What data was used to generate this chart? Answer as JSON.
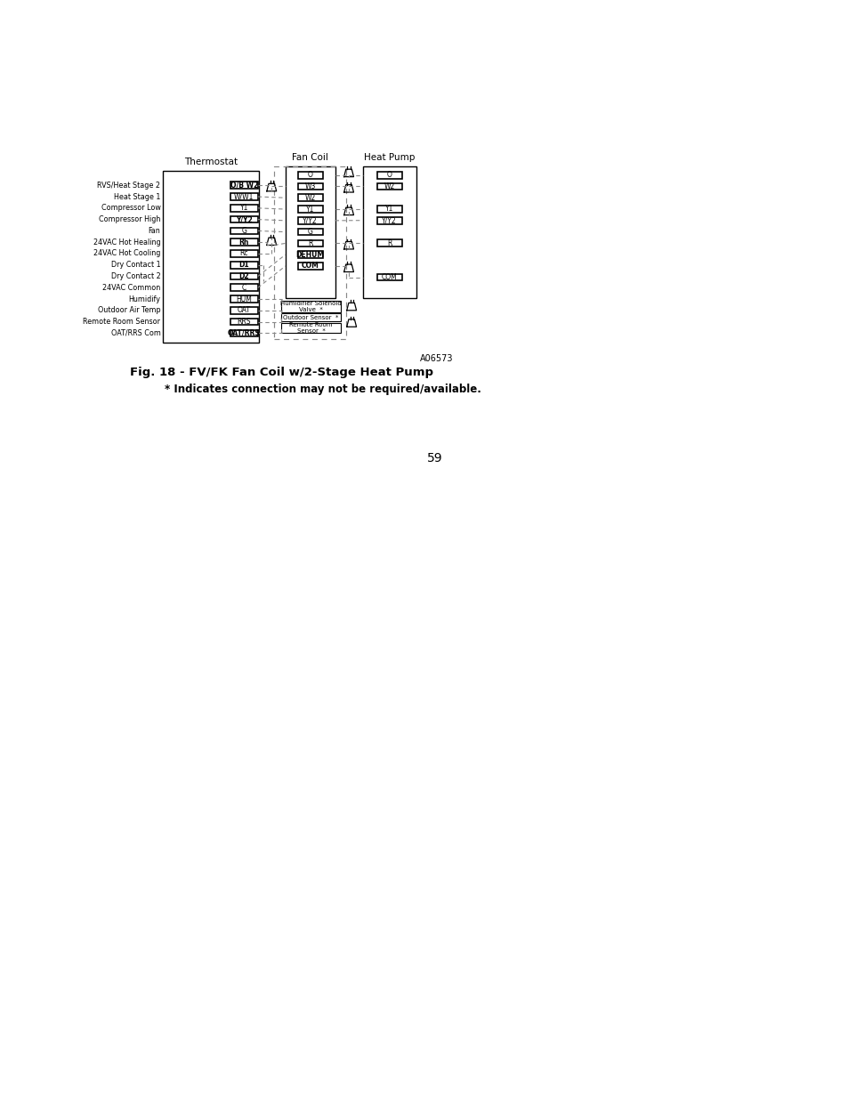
{
  "title": "Fig. 18 - FV/FK Fan Coil w/2-Stage Heat Pump",
  "subtitle": "* Indicates connection may not be required/available.",
  "ref_num": "A06573",
  "thermostat_label": "Thermostat",
  "fan_coil_label": "Fan Coil",
  "heat_pump_label": "Heat Pump",
  "thermostat_rows": [
    {
      "label": "RVS/Heat Stage 2",
      "terminal": "O/B W2",
      "bold": true
    },
    {
      "label": "Heat Stage 1",
      "terminal": "W/W1",
      "bold": false
    },
    {
      "label": "Compressor Low",
      "terminal": "Y1",
      "bold": false
    },
    {
      "label": "Compressor High",
      "terminal": "Y/Y2",
      "bold": true
    },
    {
      "label": "Fan",
      "terminal": "G",
      "bold": false
    },
    {
      "label": "24VAC Hot Healing",
      "terminal": "Rh",
      "bold": true
    },
    {
      "label": "24VAC Hot Cooling",
      "terminal": "Rc",
      "bold": false
    },
    {
      "label": "Dry Contact 1",
      "terminal": "D1",
      "bold": true
    },
    {
      "label": "Dry Contact 2",
      "terminal": "D2",
      "bold": true
    },
    {
      "label": "24VAC Common",
      "terminal": "C",
      "bold": false
    },
    {
      "label": "Humidify",
      "terminal": "HUM",
      "bold": false
    },
    {
      "label": "Outdoor Air Temp",
      "terminal": "OAT",
      "bold": false
    },
    {
      "label": "Remote Room Sensor",
      "terminal": "RRS",
      "bold": false
    },
    {
      "label": "OAT/RRS Com",
      "terminal": "OAT/RRS",
      "bold": true
    }
  ],
  "fc_terminals": [
    "O",
    "W3",
    "W2",
    "Y1",
    "Y/Y2",
    "G",
    "R",
    "DEHUM",
    "COM"
  ],
  "fc_bold": [
    false,
    false,
    false,
    false,
    false,
    false,
    false,
    true,
    true
  ],
  "hp_terminals": [
    "O",
    "W2",
    "Y1",
    "Y/Y2",
    "R",
    "COM"
  ],
  "hp_bold": [
    false,
    false,
    false,
    false,
    false,
    false
  ],
  "page_num": "59",
  "bg_color": "#ffffff"
}
